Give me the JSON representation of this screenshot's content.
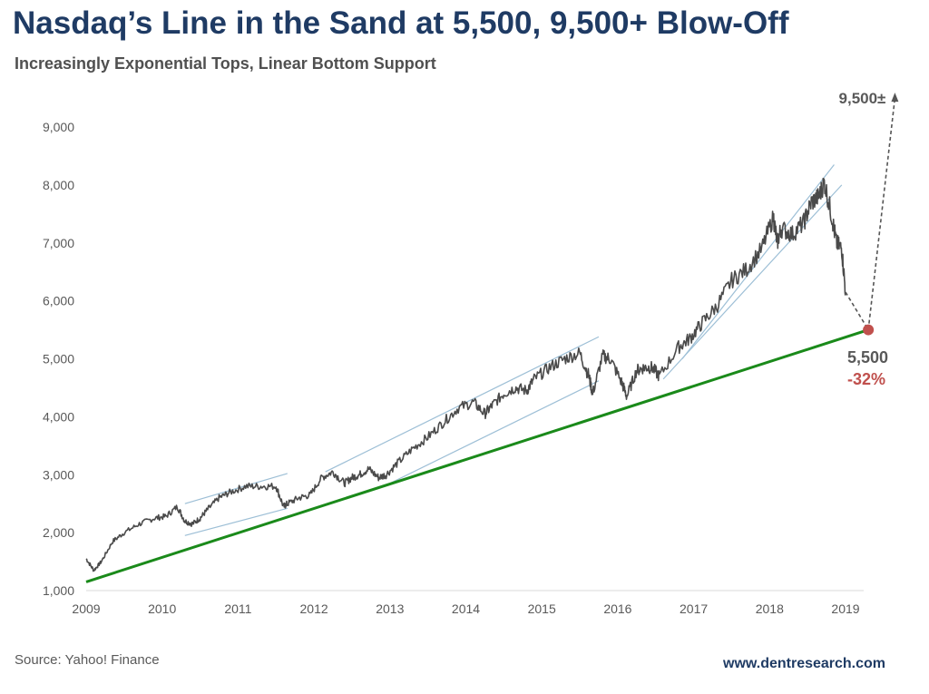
{
  "title": "Nasdaq’s Line in the Sand at 5,500, 9,500+ Blow-Off",
  "subtitle": "Increasingly Exponential Tops, Linear Bottom Support",
  "source": "Source: Yahoo! Finance",
  "website": "www.dentresearch.com",
  "colors": {
    "title": "#1f3b64",
    "price_line": "#4a4a4a",
    "support_line": "#1a8a1a",
    "channel_lines": "#9dbfd6",
    "target_point": "#c0504d",
    "projection": "#555555"
  },
  "chart_data": {
    "type": "line",
    "x_tick_labels": [
      "2009",
      "2010",
      "2011",
      "2012",
      "2013",
      "2014",
      "2015",
      "2016",
      "2017",
      "2018",
      "2019"
    ],
    "y_tick_labels": [
      "1,000",
      "2,000",
      "3,000",
      "4,000",
      "5,000",
      "6,000",
      "7,000",
      "8,000",
      "9,000"
    ],
    "ylim": [
      1000,
      9600
    ],
    "xlim": [
      2009.0,
      2019.5
    ],
    "grid": false,
    "series": [
      {
        "values_x": [
          2009.0,
          2009.1,
          2009.2,
          2009.35,
          2009.5,
          2009.7,
          2009.9,
          2010.05,
          2010.2,
          2010.3,
          2010.4,
          2010.5,
          2010.6,
          2010.75,
          2010.9,
          2011.1,
          2011.3,
          2011.5,
          2011.6,
          2011.65,
          2011.8,
          2011.95,
          2012.1,
          2012.25,
          2012.4,
          2012.5,
          2012.6,
          2012.72,
          2012.85,
          2012.95,
          2013.1,
          2013.3,
          2013.5,
          2013.7,
          2013.9,
          2014.1,
          2014.25,
          2014.35,
          2014.5,
          2014.65,
          2014.8,
          2014.9,
          2015.1,
          2015.3,
          2015.5,
          2015.62,
          2015.67,
          2015.8,
          2015.9,
          2016.05,
          2016.12,
          2016.25,
          2016.35,
          2016.45,
          2016.55,
          2016.8,
          2016.95,
          2017.1,
          2017.3,
          2017.5,
          2017.7,
          2017.9,
          2018.05,
          2018.1,
          2018.15,
          2018.3,
          2018.45,
          2018.55,
          2018.65,
          2018.72,
          2018.82,
          2018.88,
          2018.95,
          2019.0
        ],
        "values_y": [
          1550,
          1350,
          1500,
          1850,
          2000,
          2150,
          2250,
          2280,
          2450,
          2200,
          2150,
          2250,
          2400,
          2600,
          2700,
          2800,
          2800,
          2800,
          2450,
          2500,
          2600,
          2650,
          2950,
          3050,
          2850,
          2950,
          3000,
          3100,
          2950,
          3000,
          3200,
          3450,
          3650,
          3900,
          4150,
          4250,
          4050,
          4200,
          4400,
          4500,
          4450,
          4650,
          4850,
          5000,
          5100,
          4700,
          4400,
          5050,
          5000,
          4600,
          4350,
          4800,
          4850,
          4850,
          4700,
          5200,
          5350,
          5600,
          5900,
          6350,
          6550,
          6900,
          7450,
          7000,
          7250,
          7150,
          7350,
          7700,
          7800,
          8050,
          7450,
          7000,
          6900,
          6150
        ]
      },
      {
        "values_x": [
          2019.0,
          2019.3
        ],
        "values_y": [
          6150,
          5500
        ],
        "style": "dashed"
      },
      {
        "values_x": [
          2019.3,
          2019.65
        ],
        "values_y": [
          5500,
          9500
        ],
        "style": "dashed"
      }
    ],
    "support_line": {
      "x": [
        2009.0,
        2019.3
      ],
      "y": [
        1150,
        5500
      ]
    },
    "channels": [
      {
        "x": [
          2010.3,
          2011.65
        ],
        "y": [
          2500,
          3020
        ]
      },
      {
        "x": [
          2010.3,
          2011.65
        ],
        "y": [
          1950,
          2420
        ]
      },
      {
        "x": [
          2012.15,
          2015.75
        ],
        "y": [
          3050,
          5380
        ]
      },
      {
        "x": [
          2013.0,
          2015.75
        ],
        "y": [
          2850,
          4620
        ]
      },
      {
        "x": [
          2016.85,
          2018.85
        ],
        "y": [
          5000,
          8350
        ]
      },
      {
        "x": [
          2016.6,
          2018.95
        ],
        "y": [
          4650,
          8000
        ]
      }
    ],
    "annotations": [
      {
        "text": "9,500±",
        "x": 2019.6,
        "y": 9500
      },
      {
        "text": "5,500",
        "x": 2019.3,
        "y": 5500
      },
      {
        "text": "-32%",
        "x": 2019.3,
        "y": 5500
      }
    ]
  }
}
